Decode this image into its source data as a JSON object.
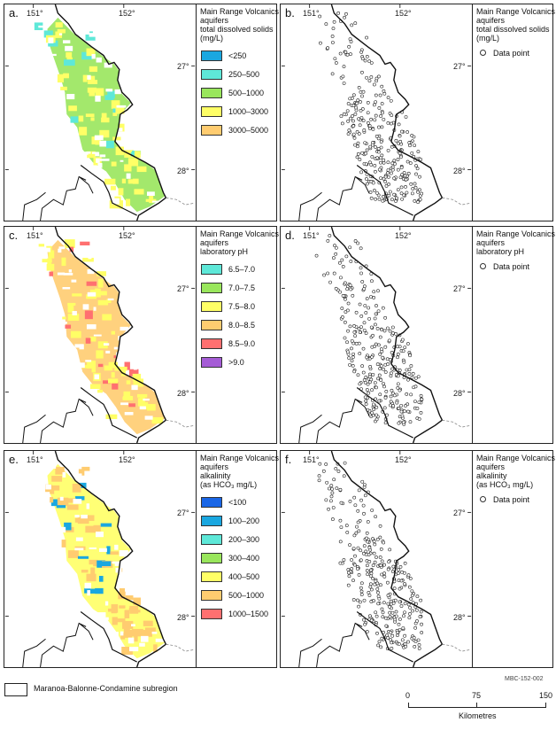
{
  "panels": [
    {
      "label": "a.",
      "title": [
        "Main Range Volcanics",
        "aquifers",
        "total dissolved solids",
        "(mg/L)"
      ],
      "kind": "fill",
      "legend": [
        {
          "label": "<250",
          "color": "#1aa7e0"
        },
        {
          "label": "250–500",
          "color": "#5ee8d8"
        },
        {
          "label": "500–1000",
          "color": "#99e65c"
        },
        {
          "label": "1000–3000",
          "color": "#ffff66"
        },
        {
          "label": "3000–5000",
          "color": "#ffcc70"
        }
      ],
      "dominant": "#99e65c",
      "secondary": "#ffff66",
      "accent": "#5ee8d8"
    },
    {
      "label": "b.",
      "title": [
        "Main Range Volcanics",
        "aquifers",
        "total dissolved solids",
        "(mg/L)"
      ],
      "kind": "points",
      "legend": [
        {
          "label": "Data point"
        }
      ]
    },
    {
      "label": "c.",
      "title": [
        "Main Range Volcanics",
        "aquifers",
        "laboratory pH"
      ],
      "kind": "fill",
      "legend": [
        {
          "label": "6.5–7.0",
          "color": "#5ee8d8"
        },
        {
          "label": "7.0–7.5",
          "color": "#99e65c"
        },
        {
          "label": "7.5–8.0",
          "color": "#ffff66"
        },
        {
          "label": "8.0–8.5",
          "color": "#ffcc70"
        },
        {
          "label": "8.5–9.0",
          "color": "#ff7070"
        },
        {
          "label": ">9.0",
          "color": "#a55cd6"
        }
      ],
      "dominant": "#ffcc70",
      "secondary": "#ffff66",
      "accent": "#ff7070"
    },
    {
      "label": "d.",
      "title": [
        "Main Range Volcanics",
        "aquifers",
        "laboratory pH"
      ],
      "kind": "points",
      "legend": [
        {
          "label": "Data point"
        }
      ]
    },
    {
      "label": "e.",
      "title": [
        "Main Range Volcanics",
        "aquifers",
        "alkalinity",
        "(as HCO₃ mg/L)"
      ],
      "kind": "fill",
      "legend": [
        {
          "label": "<100",
          "color": "#1a66e6"
        },
        {
          "label": "100–200",
          "color": "#1aa7e0"
        },
        {
          "label": "200–300",
          "color": "#5ee8d8"
        },
        {
          "label": "300–400",
          "color": "#99e65c"
        },
        {
          "label": "400–500",
          "color": "#ffff66"
        },
        {
          "label": "500–1000",
          "color": "#ffcc70"
        },
        {
          "label": "1000–1500",
          "color": "#ff7070"
        }
      ],
      "dominant": "#ffff66",
      "secondary": "#ffcc70",
      "accent": "#1aa7e0"
    },
    {
      "label": "f.",
      "title": [
        "Main Range Volcanics",
        "aquifers",
        "alkalinity",
        "(as HCO₃ mg/L)"
      ],
      "kind": "points",
      "legend": [
        {
          "label": "Data point"
        }
      ]
    }
  ],
  "axes": {
    "lon": [
      "151°",
      "152°"
    ],
    "lat": [
      "27°",
      "28°"
    ]
  },
  "footer": {
    "region_label": "Maranoa-Balonne-Condamine subregion",
    "code": "MBC-152-002",
    "scale_ticks": [
      "0",
      "75",
      "150"
    ],
    "scale_unit": "Kilometres"
  }
}
